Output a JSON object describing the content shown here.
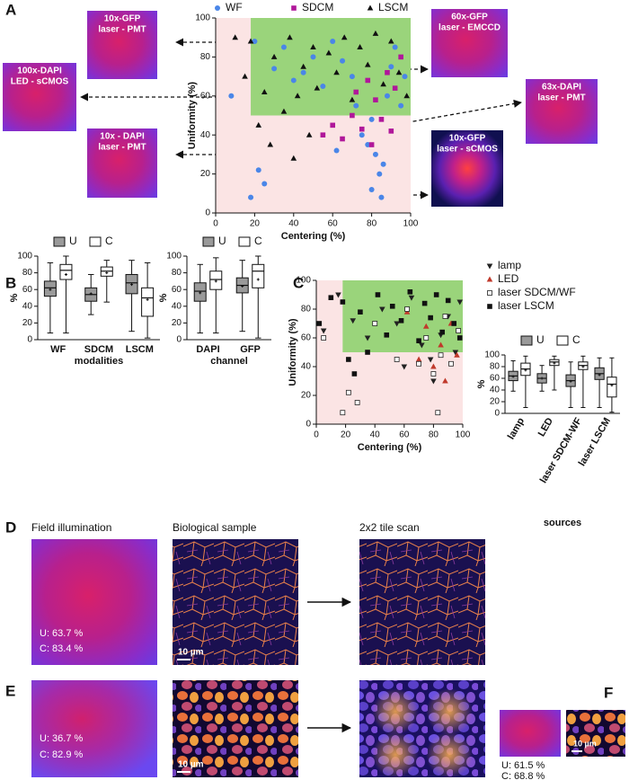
{
  "panel_labels": [
    "A",
    "B",
    "C",
    "D",
    "E",
    "F"
  ],
  "images_a": [
    {
      "lines": [
        "10x-GFP",
        "laser - PMT"
      ]
    },
    {
      "lines": [
        "100x-DAPI",
        "LED - sCMOS"
      ]
    },
    {
      "lines": [
        "10x - DAPI",
        "laser - PMT"
      ]
    },
    {
      "lines": [
        "60x-GFP",
        "laser - EMCCD"
      ]
    },
    {
      "lines": [
        "63x-DAPI",
        "laser - PMT"
      ]
    },
    {
      "lines": [
        "10x-GFP",
        "laser - sCMOS"
      ]
    }
  ],
  "panel_d": {
    "titles": [
      "Field illumination",
      "Biological sample",
      "2x2 tile scan"
    ],
    "u": "U: 63.7 %",
    "c": "C: 83.4 %",
    "scale": "10 µm"
  },
  "panel_e": {
    "u": "U: 36.7 %",
    "c": "C: 82.9 %",
    "scale": "10 µm"
  },
  "panel_f": {
    "u": "U: 61.5 %",
    "c": "C: 68.8 %",
    "scale": "10 µm"
  },
  "chart_data": [
    {
      "type": "scatter",
      "xlabel": "Centering (%)",
      "ylabel": "Uniformity (%)",
      "xlim": [
        0,
        100
      ],
      "ylim": [
        0,
        100
      ],
      "xticks": [
        0,
        20,
        40,
        60,
        80,
        100
      ],
      "yticks": [
        0,
        20,
        40,
        60,
        80,
        100
      ],
      "legend": "top",
      "highlight": {
        "x": [
          18,
          100
        ],
        "y": [
          50,
          100
        ]
      },
      "series": [
        {
          "name": "WF",
          "color": "#4a86e8",
          "marker": "circle",
          "x": [
            8,
            18,
            22,
            25,
            30,
            35,
            40,
            45,
            50,
            55,
            60,
            65,
            70,
            72,
            75,
            78,
            80,
            82,
            84,
            85,
            86,
            88,
            90,
            92,
            95,
            97,
            20,
            62,
            80
          ],
          "values": [
            60,
            8,
            22,
            15,
            74,
            85,
            68,
            72,
            80,
            65,
            88,
            78,
            70,
            55,
            40,
            35,
            48,
            30,
            20,
            8,
            25,
            60,
            75,
            85,
            55,
            70,
            88,
            32,
            12
          ]
        },
        {
          "name": "SDCM",
          "color": "#b0179a",
          "marker": "square",
          "x": [
            55,
            60,
            65,
            70,
            72,
            75,
            78,
            80,
            82,
            85,
            88,
            90,
            92,
            95
          ],
          "values": [
            40,
            45,
            38,
            50,
            62,
            43,
            68,
            35,
            58,
            48,
            72,
            42,
            64,
            80
          ]
        },
        {
          "name": "LSCM",
          "color": "#111111",
          "marker": "triangle",
          "x": [
            10,
            15,
            18,
            22,
            25,
            28,
            30,
            35,
            38,
            42,
            45,
            48,
            50,
            52,
            58,
            62,
            66,
            70,
            74,
            78,
            82,
            86,
            90,
            94,
            98,
            40
          ],
          "values": [
            90,
            70,
            88,
            45,
            62,
            35,
            80,
            52,
            90,
            60,
            75,
            40,
            85,
            64,
            82,
            72,
            90,
            58,
            85,
            76,
            92,
            66,
            88,
            72,
            60,
            28
          ]
        }
      ]
    },
    {
      "type": "box",
      "xlabel": "modalities",
      "ylabel": "%",
      "categories": [
        "WF",
        "SDCM",
        "LSCM"
      ],
      "ylim": [
        0,
        100
      ],
      "yticks": [
        0,
        20,
        40,
        60,
        80,
        100
      ],
      "series": [
        {
          "name": "U",
          "color": "#9a9a9a",
          "min": [
            8,
            30,
            10
          ],
          "q1": [
            52,
            46,
            55
          ],
          "median": [
            62,
            54,
            68
          ],
          "q3": [
            70,
            62,
            78
          ],
          "max": [
            92,
            78,
            95
          ],
          "mean": [
            60,
            55,
            66
          ]
        },
        {
          "name": "C",
          "color": "#ffffff",
          "min": [
            8,
            45,
            2
          ],
          "q1": [
            72,
            76,
            28
          ],
          "median": [
            83,
            82,
            50
          ],
          "q3": [
            90,
            87,
            62
          ],
          "max": [
            100,
            95,
            92
          ],
          "mean": [
            78,
            80,
            48
          ]
        }
      ]
    },
    {
      "type": "box",
      "xlabel": "channel",
      "ylabel": "%",
      "categories": [
        "DAPI",
        "GFP"
      ],
      "ylim": [
        0,
        100
      ],
      "yticks": [
        0,
        20,
        40,
        60,
        80,
        100
      ],
      "series": [
        {
          "name": "U",
          "color": "#9a9a9a",
          "min": [
            8,
            10
          ],
          "q1": [
            46,
            56
          ],
          "median": [
            58,
            65
          ],
          "q3": [
            68,
            74
          ],
          "max": [
            90,
            95
          ],
          "mean": [
            56,
            64
          ]
        },
        {
          "name": "C",
          "color": "#ffffff",
          "min": [
            8,
            2
          ],
          "q1": [
            60,
            62
          ],
          "median": [
            72,
            82
          ],
          "q3": [
            82,
            90
          ],
          "max": [
            98,
            100
          ],
          "mean": [
            70,
            72
          ]
        }
      ]
    },
    {
      "type": "scatter",
      "xlabel": "Centering (%)",
      "ylabel": "Uniformity (%)",
      "xlim": [
        0,
        100
      ],
      "ylim": [
        0,
        100
      ],
      "xticks": [
        0,
        20,
        40,
        60,
        80,
        100
      ],
      "yticks": [
        0,
        20,
        40,
        60,
        80,
        100
      ],
      "legend": "right",
      "highlight": {
        "x": [
          18,
          100
        ],
        "y": [
          50,
          100
        ]
      },
      "series": [
        {
          "name": "lamp",
          "color": "#222222",
          "marker": "triangle-down",
          "x": [
            5,
            15,
            25,
            35,
            45,
            55,
            65,
            72,
            78,
            85,
            90,
            95,
            60,
            80,
            98
          ],
          "values": [
            65,
            90,
            72,
            60,
            80,
            70,
            88,
            55,
            45,
            62,
            75,
            50,
            40,
            30,
            85
          ]
        },
        {
          "name": "LED",
          "color": "#c0392b",
          "marker": "triangle",
          "x": [
            62,
            70,
            75,
            80,
            85,
            88,
            92,
            96
          ],
          "values": [
            78,
            45,
            68,
            40,
            55,
            30,
            70,
            48
          ]
        },
        {
          "name": "laser SDCM/WF",
          "color": "#222222",
          "marker": "square-open",
          "x": [
            5,
            18,
            22,
            28,
            40,
            55,
            62,
            70,
            75,
            80,
            83,
            85,
            88,
            92,
            97
          ],
          "values": [
            60,
            8,
            22,
            15,
            70,
            45,
            80,
            42,
            60,
            35,
            8,
            48,
            75,
            42,
            65
          ]
        },
        {
          "name": "laser LSCM",
          "color": "#111111",
          "marker": "square",
          "x": [
            2,
            10,
            18,
            22,
            30,
            35,
            42,
            48,
            52,
            58,
            64,
            70,
            74,
            78,
            82,
            86,
            90,
            94,
            98,
            26
          ],
          "values": [
            70,
            88,
            85,
            45,
            78,
            50,
            90,
            62,
            82,
            72,
            92,
            58,
            84,
            74,
            90,
            64,
            86,
            70,
            60,
            35
          ]
        }
      ]
    },
    {
      "type": "box",
      "xlabel": "sources",
      "ylabel": "%",
      "categories": [
        "lamp",
        "LED",
        "laser SDCM-WF",
        "laser LSCM"
      ],
      "ylim": [
        0,
        100
      ],
      "yticks": [
        0,
        20,
        40,
        60,
        80,
        100
      ],
      "series": [
        {
          "name": "U",
          "color": "#9a9a9a",
          "min": [
            38,
            38,
            10,
            10
          ],
          "q1": [
            56,
            52,
            46,
            58
          ],
          "median": [
            64,
            60,
            56,
            68
          ],
          "q3": [
            72,
            68,
            66,
            78
          ],
          "max": [
            90,
            82,
            88,
            95
          ],
          "mean": [
            63,
            60,
            55,
            66
          ]
        },
        {
          "name": "C",
          "color": "#ffffff",
          "min": [
            10,
            40,
            10,
            2
          ],
          "q1": [
            65,
            82,
            75,
            28
          ],
          "median": [
            76,
            88,
            82,
            50
          ],
          "q3": [
            86,
            92,
            88,
            62
          ],
          "max": [
            98,
            98,
            98,
            95
          ],
          "mean": [
            74,
            86,
            80,
            48
          ]
        }
      ]
    }
  ]
}
